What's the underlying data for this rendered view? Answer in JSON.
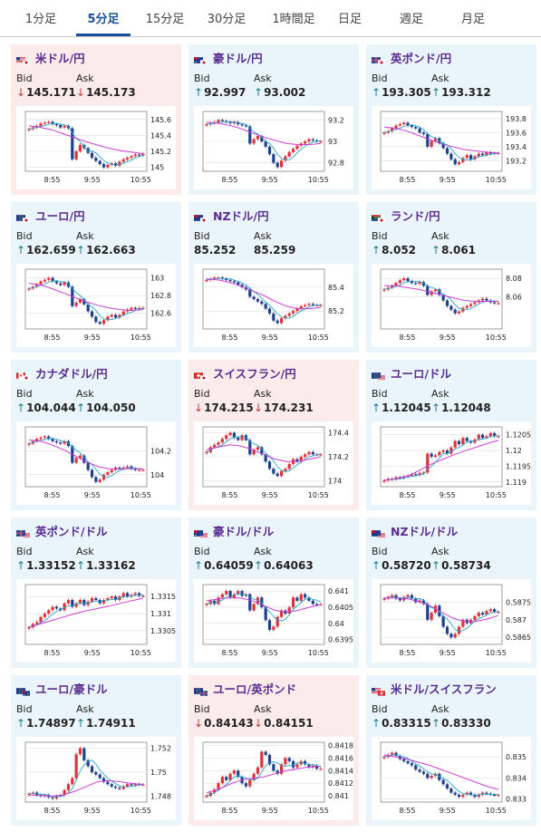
{
  "tabs": [
    {
      "label": "1分足",
      "active": false
    },
    {
      "label": "5分足",
      "active": true
    },
    {
      "label": "15分足",
      "active": false
    },
    {
      "label": "30分足",
      "active": false
    },
    {
      "label": "1時間足",
      "active": false
    },
    {
      "label": "日足",
      "active": false
    },
    {
      "label": "週足",
      "active": false
    },
    {
      "label": "月足",
      "active": false
    }
  ],
  "labels": {
    "bid": "Bid",
    "ask": "Ask"
  },
  "colors": {
    "accent": "#1a4f9c",
    "pair_name": "#5a2d91",
    "up_arrow": "#1d7d8a",
    "down_arrow": "#c23b3b",
    "candle_up": "#e0323a",
    "candle_down": "#1f3f8f",
    "ma_short": "#27a7c8",
    "ma_long": "#c93fd0",
    "card_up_bg": "#eaf4fb",
    "card_down_bg": "#fcebeb"
  },
  "cards": [
    {
      "name": "米ドル/円",
      "flags": [
        "us",
        "jp"
      ],
      "bid": "145.171",
      "ask": "145.173",
      "bid_dir": "down",
      "ask_dir": "down",
      "trend": "down",
      "chart": {
        "y_ticks": [
          "145.6",
          "145.4",
          "145.2",
          "145"
        ],
        "y_range": [
          144.95,
          145.7
        ],
        "x_ticks": [
          "8:55",
          "9:55",
          "10:55"
        ],
        "points": [
          145.48,
          145.5,
          145.52,
          145.55,
          145.56,
          145.57,
          145.54,
          145.53,
          145.5,
          145.52,
          145.49,
          145.1,
          145.2,
          145.28,
          145.24,
          145.18,
          145.12,
          145.08,
          145.04,
          145.0,
          145.03,
          145.05,
          145.02,
          145.07,
          145.1,
          145.12,
          145.14,
          145.16,
          145.15,
          145.17
        ],
        "ma": [
          145.52,
          145.5,
          145.47,
          145.42,
          145.37,
          145.32,
          145.28,
          145.24,
          145.21,
          145.19,
          145.17
        ]
      }
    },
    {
      "name": "豪ドル/円",
      "flags": [
        "au",
        "jp"
      ],
      "bid": "92.997",
      "ask": "93.002",
      "bid_dir": "up",
      "ask_dir": "up",
      "trend": "up",
      "chart": {
        "y_ticks": [
          "93.2",
          "93",
          "92.8"
        ],
        "y_range": [
          92.72,
          93.28
        ],
        "x_ticks": [
          "8:55",
          "9:55",
          "10:55"
        ],
        "points": [
          93.16,
          93.17,
          93.18,
          93.2,
          93.19,
          93.18,
          93.17,
          93.18,
          93.16,
          93.15,
          93.14,
          92.98,
          93.02,
          93.05,
          93.0,
          92.95,
          92.88,
          92.8,
          92.76,
          92.82,
          92.86,
          92.9,
          92.93,
          92.96,
          92.98,
          93.0,
          93.02,
          93.01,
          93.0,
          93.0
        ],
        "ma": [
          93.18,
          93.17,
          93.15,
          93.12,
          93.08,
          93.04,
          93.01,
          92.98,
          92.97,
          92.97,
          92.98
        ]
      }
    },
    {
      "name": "英ポンド/円",
      "flags": [
        "gb",
        "jp"
      ],
      "bid": "193.305",
      "ask": "193.312",
      "bid_dir": "up",
      "ask_dir": "up",
      "trend": "up",
      "chart": {
        "y_ticks": [
          "193.8",
          "193.6",
          "193.4",
          "193.2"
        ],
        "y_range": [
          193.05,
          193.9
        ],
        "x_ticks": [
          "8:55",
          "9:55",
          "10:55"
        ],
        "points": [
          193.6,
          193.62,
          193.66,
          193.7,
          193.72,
          193.74,
          193.7,
          193.68,
          193.66,
          193.6,
          193.58,
          193.4,
          193.48,
          193.52,
          193.45,
          193.38,
          193.3,
          193.22,
          193.15,
          193.18,
          193.24,
          193.28,
          193.22,
          193.26,
          193.3,
          193.28,
          193.32,
          193.3,
          193.31,
          193.31
        ],
        "ma": [
          193.68,
          193.66,
          193.62,
          193.56,
          193.5,
          193.44,
          193.4,
          193.36,
          193.34,
          193.32,
          193.31
        ]
      }
    },
    {
      "name": "ユーロ/円",
      "flags": [
        "eu",
        "jp"
      ],
      "bid": "162.659",
      "ask": "162.663",
      "bid_dir": "up",
      "ask_dir": "up",
      "trend": "up",
      "chart": {
        "y_ticks": [
          "163",
          "162.8",
          "162.6"
        ],
        "y_range": [
          162.42,
          163.1
        ],
        "x_ticks": [
          "8:55",
          "9:55",
          "10:55"
        ],
        "points": [
          162.88,
          162.9,
          162.93,
          162.96,
          162.98,
          163.0,
          162.96,
          162.94,
          162.92,
          162.95,
          162.9,
          162.68,
          162.72,
          162.76,
          162.7,
          162.62,
          162.56,
          162.5,
          162.48,
          162.52,
          162.56,
          162.58,
          162.55,
          162.58,
          162.62,
          162.64,
          162.66,
          162.65,
          162.66,
          162.66
        ],
        "ma": [
          162.94,
          162.92,
          162.88,
          162.83,
          162.78,
          162.73,
          162.69,
          162.66,
          162.64,
          162.63,
          162.64
        ]
      }
    },
    {
      "name": "NZドル/円",
      "flags": [
        "nz",
        "jp"
      ],
      "bid": "85.252",
      "ask": "85.259",
      "bid_dir": "none",
      "ask_dir": "none",
      "trend": "up",
      "chart": {
        "y_ticks": [
          "85.4",
          "85.2"
        ],
        "y_range": [
          85.05,
          85.55
        ],
        "x_ticks": [
          "8:55",
          "9:55",
          "10:55"
        ],
        "points": [
          85.46,
          85.47,
          85.48,
          85.48,
          85.47,
          85.46,
          85.45,
          85.44,
          85.42,
          85.4,
          85.38,
          85.32,
          85.3,
          85.28,
          85.26,
          85.22,
          85.18,
          85.12,
          85.1,
          85.14,
          85.16,
          85.18,
          85.2,
          85.22,
          85.24,
          85.25,
          85.26,
          85.25,
          85.25,
          85.25
        ],
        "ma": [
          85.47,
          85.46,
          85.44,
          85.41,
          85.37,
          85.33,
          85.28,
          85.24,
          85.22,
          85.22,
          85.23
        ]
      }
    },
    {
      "name": "ランド/円",
      "flags": [
        "za",
        "jp"
      ],
      "bid": "8.052",
      "ask": "8.061",
      "bid_dir": "up",
      "ask_dir": "up",
      "trend": "up",
      "chart": {
        "y_ticks": [
          "8.08",
          "8.06"
        ],
        "y_range": [
          8.025,
          8.09
        ],
        "x_ticks": [
          "8:55",
          "9:55",
          "10:55"
        ],
        "points": [
          8.068,
          8.07,
          8.072,
          8.075,
          8.078,
          8.08,
          8.077,
          8.075,
          8.074,
          8.076,
          8.072,
          8.062,
          8.066,
          8.068,
          8.062,
          8.056,
          8.05,
          8.046,
          8.042,
          8.044,
          8.048,
          8.05,
          8.052,
          8.054,
          8.056,
          8.058,
          8.056,
          8.054,
          8.053,
          8.053
        ],
        "ma": [
          8.072,
          8.072,
          8.07,
          8.068,
          8.065,
          8.062,
          8.059,
          8.056,
          8.055,
          8.055,
          8.055
        ]
      }
    },
    {
      "name": "カナダドル/円",
      "flags": [
        "ca",
        "jp"
      ],
      "bid": "104.044",
      "ask": "104.050",
      "bid_dir": "up",
      "ask_dir": "up",
      "trend": "up",
      "chart": {
        "y_ticks": [
          "104.2",
          "104"
        ],
        "y_range": [
          103.9,
          104.4
        ],
        "x_ticks": [
          "8:55",
          "9:55",
          "10:55"
        ],
        "points": [
          104.26,
          104.28,
          104.3,
          104.31,
          104.32,
          104.3,
          104.28,
          104.27,
          104.26,
          104.28,
          104.24,
          104.1,
          104.14,
          104.16,
          104.1,
          104.04,
          103.98,
          103.94,
          103.96,
          104.0,
          104.02,
          104.04,
          104.06,
          104.05,
          104.06,
          104.07,
          104.05,
          104.04,
          104.04,
          104.04
        ],
        "ma": [
          104.29,
          104.28,
          104.25,
          104.21,
          104.16,
          104.11,
          104.07,
          104.05,
          104.05,
          104.05,
          104.05
        ]
      }
    },
    {
      "name": "スイスフラン/円",
      "flags": [
        "ch",
        "jp"
      ],
      "bid": "174.215",
      "ask": "174.231",
      "bid_dir": "down",
      "ask_dir": "down",
      "trend": "down",
      "chart": {
        "y_ticks": [
          "174.4",
          "174.2",
          "174"
        ],
        "y_range": [
          173.95,
          174.45
        ],
        "x_ticks": [
          "8:55",
          "9:55",
          "10:55"
        ],
        "points": [
          174.24,
          174.28,
          174.3,
          174.32,
          174.35,
          174.38,
          174.4,
          174.36,
          174.34,
          174.38,
          174.34,
          174.22,
          174.26,
          174.28,
          174.22,
          174.16,
          174.1,
          174.06,
          174.04,
          174.08,
          174.1,
          174.14,
          174.18,
          174.16,
          174.2,
          174.22,
          174.24,
          174.22,
          174.22,
          174.22
        ],
        "ma": [
          174.26,
          174.28,
          174.3,
          174.29,
          174.26,
          174.22,
          174.18,
          174.16,
          174.16,
          174.18,
          174.2
        ]
      }
    },
    {
      "name": "ユーロ/ドル",
      "flags": [
        "eu",
        "us"
      ],
      "bid": "1.12045",
      "ask": "1.12048",
      "bid_dir": "up",
      "ask_dir": "up",
      "trend": "up",
      "chart": {
        "y_ticks": [
          "1.1205",
          "1.12",
          "1.1195",
          "1.119"
        ],
        "y_range": [
          1.11885,
          1.12075
        ],
        "x_ticks": [
          "8:55",
          "9:55",
          "10:55"
        ],
        "points": [
          1.11905,
          1.1191,
          1.11908,
          1.11915,
          1.11912,
          1.11918,
          1.1192,
          1.11925,
          1.11922,
          1.11928,
          1.1193,
          1.1199,
          1.1198,
          1.11985,
          1.11995,
          1.12,
          1.1199,
          1.1201,
          1.1203,
          1.1202,
          1.1204,
          1.1203,
          1.12025,
          1.12035,
          1.1205,
          1.1204,
          1.12045,
          1.12055,
          1.12045,
          1.12045
        ],
        "ma": [
          1.11905,
          1.1191,
          1.11918,
          1.11935,
          1.11955,
          1.1197,
          1.11985,
          1.11998,
          1.1201,
          1.12022,
          1.12032
        ]
      }
    },
    {
      "name": "英ポンド/ドル",
      "flags": [
        "gb",
        "us"
      ],
      "bid": "1.33152",
      "ask": "1.33162",
      "bid_dir": "up",
      "ask_dir": "up",
      "trend": "up",
      "chart": {
        "y_ticks": [
          "1.3315",
          "1.331",
          "1.3305"
        ],
        "y_range": [
          1.3301,
          1.33185
        ],
        "x_ticks": [
          "8:55",
          "9:55",
          "10:55"
        ],
        "points": [
          1.3306,
          1.3307,
          1.33075,
          1.3309,
          1.331,
          1.3311,
          1.3312,
          1.33115,
          1.3311,
          1.3313,
          1.3314,
          1.3312,
          1.3313,
          1.3314,
          1.33125,
          1.33135,
          1.33145,
          1.3314,
          1.3313,
          1.3314,
          1.33145,
          1.3315,
          1.3314,
          1.3315,
          1.3316,
          1.3315,
          1.33155,
          1.3316,
          1.33152,
          1.33152
        ],
        "ma": [
          1.3306,
          1.3307,
          1.3308,
          1.3309,
          1.331,
          1.33108,
          1.33115,
          1.33122,
          1.3313,
          1.33138,
          1.33145
        ]
      }
    },
    {
      "name": "豪ドル/ドル",
      "flags": [
        "au",
        "us"
      ],
      "bid": "0.64059",
      "ask": "0.64063",
      "bid_dir": "up",
      "ask_dir": "up",
      "trend": "up",
      "chart": {
        "y_ticks": [
          "0.641",
          "0.6405",
          "0.64",
          "0.6395"
        ],
        "y_range": [
          0.63935,
          0.6412
        ],
        "x_ticks": [
          "8:55",
          "9:55",
          "10:55"
        ],
        "points": [
          0.6406,
          0.6407,
          0.6406,
          0.6408,
          0.6409,
          0.641,
          0.6408,
          0.6409,
          0.641,
          0.64085,
          0.6409,
          0.6404,
          0.6406,
          0.6408,
          0.6405,
          0.6401,
          0.6398,
          0.6399,
          0.6402,
          0.6404,
          0.6403,
          0.6405,
          0.6408,
          0.6407,
          0.6409,
          0.6408,
          0.6407,
          0.6406,
          0.64059,
          0.64059
        ],
        "ma": [
          0.6407,
          0.64075,
          0.6408,
          0.64078,
          0.6407,
          0.64055,
          0.6404,
          0.64035,
          0.6404,
          0.6405,
          0.64058
        ]
      }
    },
    {
      "name": "NZドル/ドル",
      "flags": [
        "nz",
        "us"
      ],
      "bid": "0.58720",
      "ask": "0.58734",
      "bid_dir": "up",
      "ask_dir": "up",
      "trend": "up",
      "chart": {
        "y_ticks": [
          "0.5875",
          "0.587",
          "0.5865"
        ],
        "y_range": [
          0.5863,
          0.588
        ],
        "x_ticks": [
          "8:55",
          "9:55",
          "10:55"
        ],
        "points": [
          0.5876,
          0.58765,
          0.5877,
          0.5876,
          0.58755,
          0.58765,
          0.5877,
          0.5876,
          0.5875,
          0.58755,
          0.58745,
          0.587,
          0.5872,
          0.5874,
          0.5871,
          0.5868,
          0.5866,
          0.5865,
          0.5866,
          0.5868,
          0.587,
          0.5869,
          0.587,
          0.5871,
          0.5872,
          0.58715,
          0.58725,
          0.5873,
          0.58722,
          0.58722
        ],
        "ma": [
          0.58762,
          0.58762,
          0.5876,
          0.58752,
          0.5874,
          0.58722,
          0.58705,
          0.58695,
          0.58695,
          0.58702,
          0.58712
        ]
      }
    },
    {
      "name": "ユーロ/豪ドル",
      "flags": [
        "eu",
        "au"
      ],
      "bid": "1.74897",
      "ask": "1.74911",
      "bid_dir": "up",
      "ask_dir": "up",
      "trend": "up",
      "chart": {
        "y_ticks": [
          "1.752",
          "1.75",
          "1.748"
        ],
        "y_range": [
          1.7475,
          1.7525
        ],
        "x_ticks": [
          "8:55",
          "9:55",
          "10:55"
        ],
        "points": [
          1.7482,
          1.7483,
          1.7481,
          1.748,
          1.7481,
          1.7479,
          1.7478,
          1.748,
          1.7481,
          1.7485,
          1.749,
          1.7495,
          1.7515,
          1.752,
          1.751,
          1.7505,
          1.75,
          1.7498,
          1.7495,
          1.7492,
          1.749,
          1.7488,
          1.7487,
          1.7486,
          1.7488,
          1.749,
          1.7489,
          1.749,
          1.74897,
          1.74897
        ],
        "ma": [
          1.7481,
          1.74805,
          1.748,
          1.7481,
          1.7484,
          1.7488,
          1.7492,
          1.7493,
          1.7492,
          1.74905,
          1.74898
        ]
      }
    },
    {
      "name": "ユーロ/英ポンド",
      "flags": [
        "eu",
        "gb"
      ],
      "bid": "0.84143",
      "ask": "0.84151",
      "bid_dir": "down",
      "ask_dir": "down",
      "trend": "down",
      "chart": {
        "y_ticks": [
          "0.8418",
          "0.8416",
          "0.8414",
          "0.8412",
          "0.841"
        ],
        "y_range": [
          0.8409,
          0.84185
        ],
        "x_ticks": [
          "8:55",
          "9:55",
          "10:55"
        ],
        "points": [
          0.841,
          0.84105,
          0.8411,
          0.8412,
          0.8413,
          0.84125,
          0.84135,
          0.8414,
          0.8413,
          0.8412,
          0.84115,
          0.84125,
          0.84135,
          0.84145,
          0.8417,
          0.84165,
          0.8415,
          0.8414,
          0.84135,
          0.8415,
          0.8416,
          0.84155,
          0.84145,
          0.8415,
          0.84155,
          0.8415,
          0.84145,
          0.84148,
          0.84143,
          0.84143
        ],
        "ma": [
          0.84105,
          0.8411,
          0.84118,
          0.84125,
          0.84128,
          0.8413,
          0.84135,
          0.8414,
          0.84143,
          0.84146,
          0.84147
        ]
      }
    },
    {
      "name": "米ドル/スイスフラン",
      "flags": [
        "us",
        "ch"
      ],
      "bid": "0.83315",
      "ask": "0.83330",
      "bid_dir": "up",
      "ask_dir": "up",
      "trend": "up",
      "chart": {
        "y_ticks": [
          "0.835",
          "0.834",
          "0.833"
        ],
        "y_range": [
          0.83285,
          0.8357
        ],
        "x_ticks": [
          "8:55",
          "9:55",
          "10:55"
        ],
        "points": [
          0.835,
          0.8351,
          0.8352,
          0.83505,
          0.8349,
          0.8348,
          0.8347,
          0.8346,
          0.8344,
          0.8343,
          0.8342,
          0.834,
          0.8341,
          0.8342,
          0.8339,
          0.8337,
          0.8335,
          0.8333,
          0.8332,
          0.8331,
          0.8332,
          0.8333,
          0.8332,
          0.8331,
          0.8332,
          0.8333,
          0.83325,
          0.8332,
          0.83318,
          0.83318
        ],
        "ma": [
          0.8351,
          0.835,
          0.8349,
          0.83475,
          0.8346,
          0.8344,
          0.8342,
          0.834,
          0.8338,
          0.8336,
          0.83345
        ]
      }
    }
  ]
}
